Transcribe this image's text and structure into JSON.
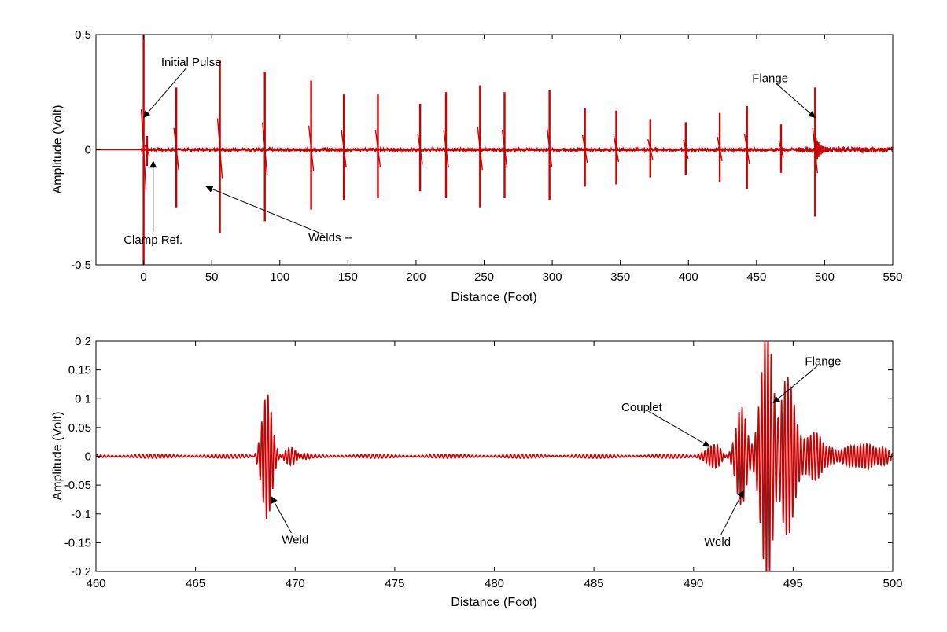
{
  "chart_data": [
    {
      "type": "line",
      "xlabel": "Distance (Foot)",
      "ylabel": "Amplitude (Volt)",
      "xlim": [
        -35,
        550
      ],
      "ylim": [
        -0.5,
        0.5
      ],
      "xticks": [
        0,
        50,
        100,
        150,
        200,
        250,
        300,
        350,
        400,
        450,
        500,
        550
      ],
      "yticks": [
        -0.5,
        0,
        0.5
      ],
      "ytick_labels": [
        "-0.5",
        "0",
        "0.5"
      ],
      "grid": false,
      "line_color": "#cc0000",
      "spikes": [
        {
          "x": 0,
          "pos": 0.5,
          "neg": -0.5
        },
        {
          "x": 2.5,
          "pos": 0.06,
          "neg": -0.07
        },
        {
          "x": 24,
          "pos": 0.27,
          "neg": -0.25
        },
        {
          "x": 56,
          "pos": 0.39,
          "neg": -0.36
        },
        {
          "x": 89,
          "pos": 0.34,
          "neg": -0.31
        },
        {
          "x": 123,
          "pos": 0.3,
          "neg": -0.26
        },
        {
          "x": 147,
          "pos": 0.24,
          "neg": -0.22
        },
        {
          "x": 172,
          "pos": 0.24,
          "neg": -0.21
        },
        {
          "x": 203,
          "pos": 0.2,
          "neg": -0.18
        },
        {
          "x": 222,
          "pos": 0.25,
          "neg": -0.21
        },
        {
          "x": 247,
          "pos": 0.28,
          "neg": -0.25
        },
        {
          "x": 265,
          "pos": 0.25,
          "neg": -0.21
        },
        {
          "x": 298,
          "pos": 0.26,
          "neg": -0.22
        },
        {
          "x": 324,
          "pos": 0.18,
          "neg": -0.16
        },
        {
          "x": 347,
          "pos": 0.17,
          "neg": -0.15
        },
        {
          "x": 372,
          "pos": 0.13,
          "neg": -0.12
        },
        {
          "x": 398,
          "pos": 0.12,
          "neg": -0.11
        },
        {
          "x": 423,
          "pos": 0.16,
          "neg": -0.14
        },
        {
          "x": 443,
          "pos": 0.19,
          "neg": -0.17
        },
        {
          "x": 468,
          "pos": 0.11,
          "neg": -0.1
        },
        {
          "x": 493,
          "pos": 0.27,
          "neg": -0.29
        }
      ],
      "annotations": [
        {
          "text": "Initial Pulse",
          "x": 35,
          "y": 0.38,
          "target_x": 0,
          "target_y": 0.14
        },
        {
          "text": "Clamp Ref.",
          "x": 7,
          "y": -0.39,
          "target_x": 7,
          "target_y": -0.05
        },
        {
          "text": "Welds --",
          "x": 137,
          "y": -0.38,
          "target_x": 46,
          "target_y": -0.16
        },
        {
          "text": "Flange",
          "x": 460,
          "y": 0.31,
          "target_x": 493,
          "target_y": 0.14
        }
      ]
    },
    {
      "type": "line",
      "xlabel": "Distance (Foot)",
      "ylabel": "Amplitude (Volt)",
      "xlim": [
        460,
        500
      ],
      "ylim": [
        -0.2,
        0.2
      ],
      "xticks": [
        460,
        465,
        470,
        475,
        480,
        485,
        490,
        495,
        500
      ],
      "yticks": [
        -0.2,
        -0.15,
        -0.1,
        -0.05,
        0,
        0.05,
        0.1,
        0.15,
        0.2
      ],
      "ytick_labels": [
        "-0.2",
        "-0.15",
        "-0.1",
        "-0.05",
        "0",
        "0.05",
        "0.1",
        "0.15",
        "0.2"
      ],
      "grid": false,
      "line_color": "#cc0000",
      "bursts": [
        {
          "x": 468.6,
          "amp": 0.11,
          "width": 0.35
        },
        {
          "x": 469.8,
          "amp": 0.012,
          "width": 0.6
        },
        {
          "x": 491.0,
          "amp": 0.02,
          "width": 0.5
        },
        {
          "x": 492.4,
          "amp": 0.09,
          "width": 0.35
        },
        {
          "x": 493.7,
          "amp": 0.22,
          "width": 0.45
        },
        {
          "x": 494.7,
          "amp": 0.14,
          "width": 0.5
        },
        {
          "x": 496.0,
          "amp": 0.04,
          "width": 0.8
        },
        {
          "x": 498.5,
          "amp": 0.02,
          "width": 1.5
        }
      ],
      "annotations": [
        {
          "text": "Weld",
          "x": 470,
          "y": -0.145,
          "target_x": 468.8,
          "target_y": -0.07
        },
        {
          "text": "Couplet",
          "x": 487.4,
          "y": 0.085,
          "target_x": 490.8,
          "target_y": 0.017
        },
        {
          "text": "Weld",
          "x": 491.2,
          "y": -0.148,
          "target_x": 492.5,
          "target_y": -0.06
        },
        {
          "text": "Flange",
          "x": 496.5,
          "y": 0.165,
          "target_x": 494.0,
          "target_y": 0.093
        }
      ]
    }
  ]
}
